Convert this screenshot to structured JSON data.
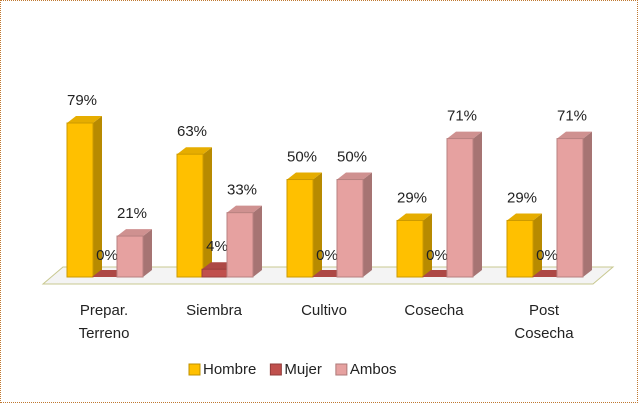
{
  "chart_data": {
    "type": "bar3d",
    "categories": [
      "Prepar. Terreno",
      "Siembra",
      "Cultivo",
      "Cosecha",
      "Post Cosecha"
    ],
    "series": [
      {
        "name": "Hombre",
        "color": "#ffc000",
        "values": [
          79,
          63,
          50,
          29,
          29
        ],
        "value_labels": [
          "79%",
          "63%",
          "50%",
          "29%",
          "29%"
        ]
      },
      {
        "name": "Mujer",
        "color": "#c0504d",
        "values": [
          0,
          4,
          0,
          0,
          0
        ],
        "value_labels": [
          "0%",
          "4%",
          "0%",
          "0%",
          "0%"
        ]
      },
      {
        "name": "Ambos",
        "color": "#e6a1a0",
        "values": [
          21,
          33,
          50,
          71,
          71
        ],
        "value_labels": [
          "21%",
          "33%",
          "50%",
          "71%",
          "71%"
        ]
      }
    ],
    "legend": "bottom"
  }
}
